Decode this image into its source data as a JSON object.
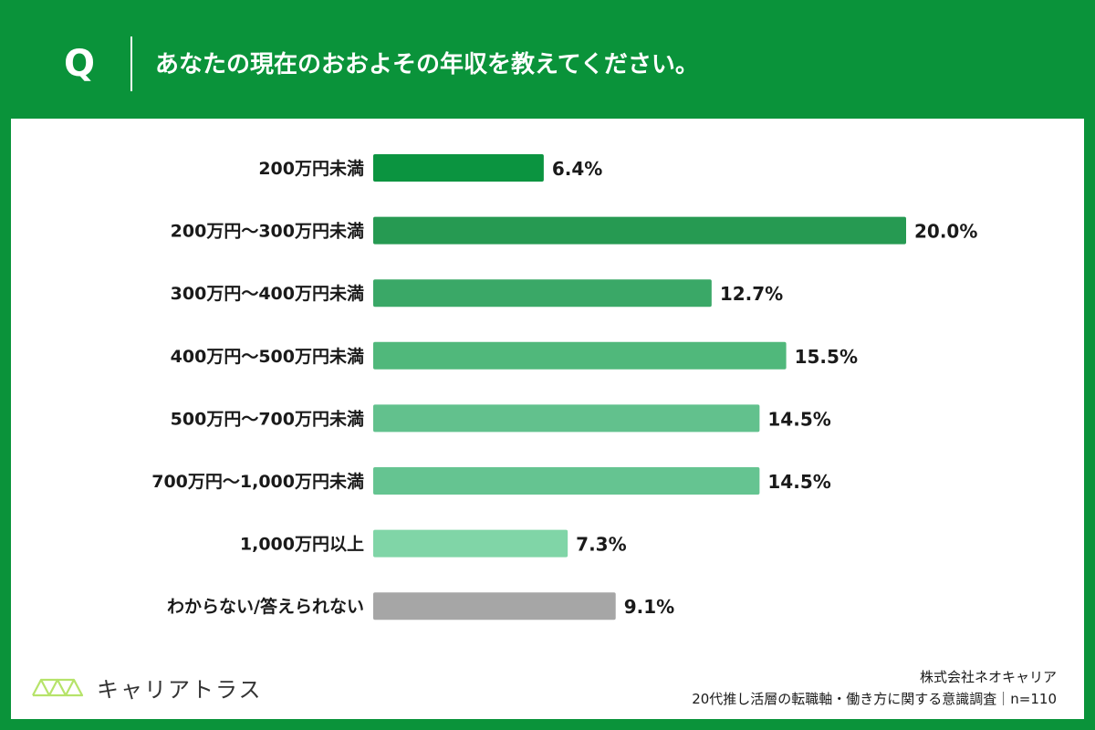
{
  "question": {
    "mark": "Q",
    "text": "あなたの現在のおおよその年収を教えてください。"
  },
  "brand": {
    "logo_text": "キャリアトラス",
    "accent": "#0a933a",
    "logo_color": "#b6e36a"
  },
  "footer": {
    "company": "株式会社ネオキャリア",
    "survey": "20代推し活層の転職軸・働き方に関する意識調査｜n=110"
  },
  "chart_data": {
    "type": "bar",
    "orientation": "horizontal",
    "unit": "%",
    "xlim": [
      0,
      20
    ],
    "grid": false,
    "categories": [
      "200万円未満",
      "200万円〜300万円未満",
      "300万円〜400万円未満",
      "400万円〜500万円未満",
      "500万円〜700万円未満",
      "700万円〜1,000万円未満",
      "1,000万円以上",
      "わからない/答えられない"
    ],
    "values": [
      6.4,
      20.0,
      12.7,
      15.5,
      14.5,
      14.5,
      7.3,
      9.1
    ],
    "value_labels": [
      "6.4%",
      "20.0%",
      "12.7%",
      "15.5%",
      "14.5%",
      "14.5%",
      "7.3%",
      "9.1%"
    ],
    "colors": [
      "#0b9440",
      "#269a52",
      "#3aa867",
      "#50b87b",
      "#62c18d",
      "#65c491",
      "#80d5a7",
      "#a6a6a6"
    ]
  }
}
